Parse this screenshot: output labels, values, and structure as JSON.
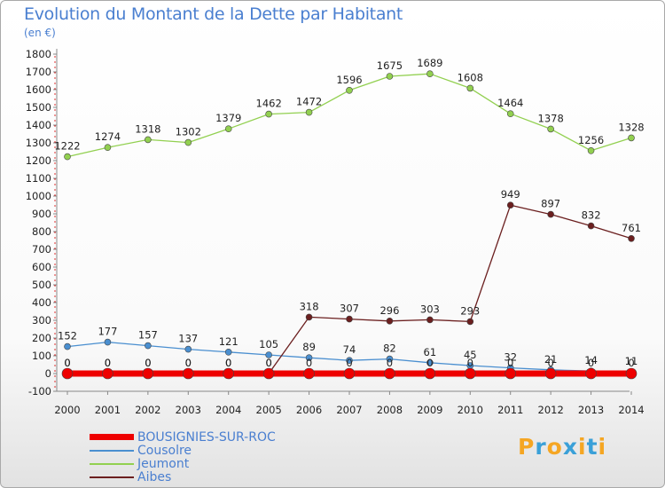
{
  "header": {
    "title": "Evolution du Montant de la Dette par Habitant",
    "subtitle": "(en €)"
  },
  "brand": {
    "letters": [
      "P",
      "r",
      "o",
      "x",
      "i",
      "t",
      "i"
    ],
    "colors": [
      "#f5a623",
      "#3aa0d8",
      "#f5a623",
      "#3aa0d8",
      "#f5a623",
      "#3aa0d8",
      "#f5a623"
    ]
  },
  "chart_data": {
    "type": "line",
    "title": "Evolution du Montant de la Dette par Habitant",
    "ylabel": "(en €)",
    "xlabel": "",
    "x": [
      "2000",
      "2001",
      "2002",
      "2003",
      "2004",
      "2005",
      "2006",
      "2007",
      "2008",
      "2009",
      "2010",
      "2011",
      "2012",
      "2013",
      "2014"
    ],
    "ylim": [
      -100,
      1800
    ],
    "yticks": [
      -100,
      0,
      100,
      200,
      300,
      400,
      500,
      600,
      700,
      800,
      900,
      1000,
      1100,
      1200,
      1300,
      1400,
      1500,
      1600,
      1700,
      1800
    ],
    "grid": false,
    "legend_position": "bottom-left",
    "series": [
      {
        "name": "BOUSIGNIES-SUR-ROC",
        "color": "#ee0000",
        "values": [
          0,
          0,
          0,
          0,
          0,
          0,
          0,
          0,
          0,
          0,
          0,
          0,
          0,
          0,
          0
        ],
        "labels": [
          "0",
          "0",
          "0",
          "0",
          "0",
          "0",
          "",
          "",
          "",
          "",
          "",
          "",
          "",
          "",
          ""
        ]
      },
      {
        "name": "Cousolre",
        "color": "#4a8fd0",
        "values": [
          152,
          177,
          157,
          137,
          121,
          105,
          89,
          74,
          82,
          61,
          45,
          32,
          21,
          14,
          11
        ],
        "labels": [
          "152",
          "177",
          "157",
          "137",
          "121",
          "105",
          "89",
          "74",
          "82",
          "61",
          "45",
          "32",
          "21",
          "14",
          "11"
        ]
      },
      {
        "name": "Jeumont",
        "color": "#92d050",
        "values": [
          1222,
          1274,
          1318,
          1302,
          1379,
          1462,
          1472,
          1596,
          1675,
          1689,
          1608,
          1464,
          1378,
          1256,
          1328
        ],
        "labels": [
          "1222",
          "1274",
          "1318",
          "1302",
          "1379",
          "1462",
          "1472",
          "1596",
          "1675",
          "1689",
          "1608",
          "1464",
          "1378",
          "1256",
          "1328"
        ]
      },
      {
        "name": "Aibes",
        "color": "#6b1f1f",
        "values": [
          0,
          0,
          0,
          0,
          0,
          0,
          318,
          307,
          296,
          303,
          293,
          949,
          897,
          832,
          761
        ],
        "labels": [
          "0",
          "0",
          "0",
          "0",
          "0",
          "0",
          "318",
          "307",
          "296",
          "303",
          "293",
          "949",
          "897",
          "832",
          "761"
        ]
      }
    ],
    "extra_labels": [
      {
        "x": "2006",
        "text": "0",
        "value": 0
      },
      {
        "x": "2007",
        "text": "0",
        "value": 0
      },
      {
        "x": "2008",
        "text": "0",
        "value": 0
      },
      {
        "x": "2009",
        "text": "0",
        "value": 0
      },
      {
        "x": "2010",
        "text": "0",
        "value": 0
      },
      {
        "x": "2011",
        "text": "0",
        "value": 0
      },
      {
        "x": "2012",
        "text": "0",
        "value": 0
      },
      {
        "x": "2013",
        "text": "0",
        "value": 0
      },
      {
        "x": "2014",
        "text": "0",
        "value": 0
      }
    ]
  }
}
